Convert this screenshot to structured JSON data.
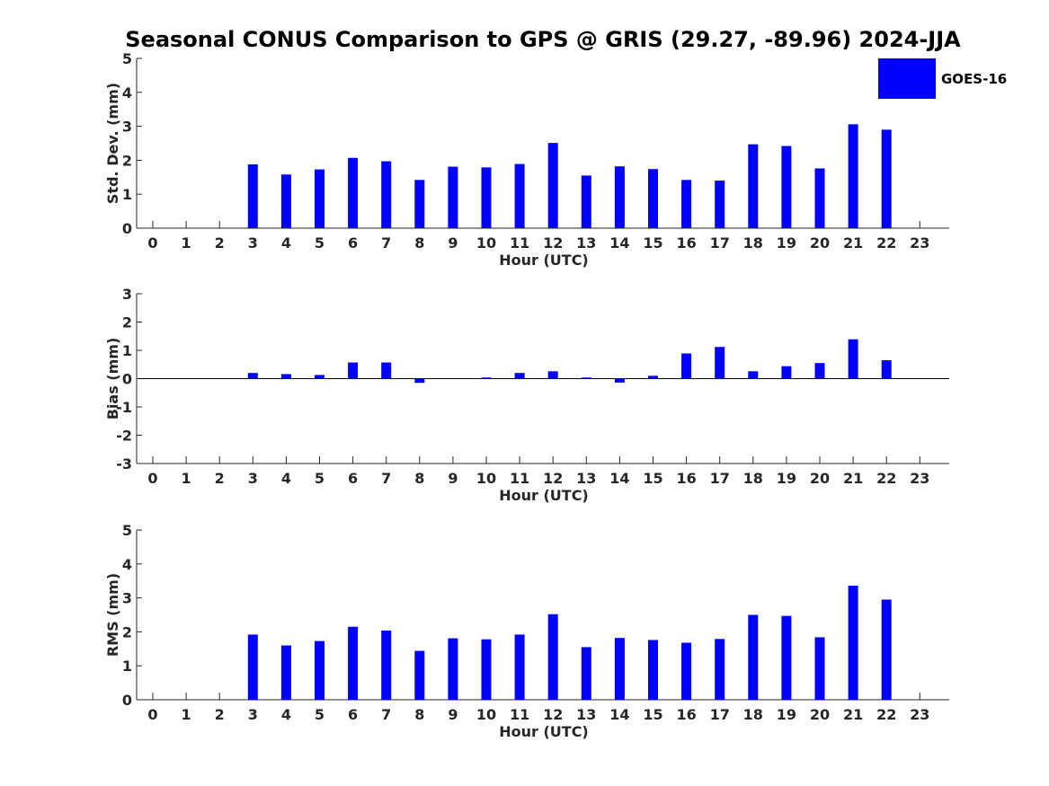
{
  "chart_data": {
    "title": "Seasonal CONUS Comparison to GPS @ GRIS (29.27, -89.96) 2024-JJA",
    "colors": {
      "bar": "#0000ff",
      "axis": "#262626"
    },
    "legend": {
      "label": "GOES-16",
      "placement": "top-right"
    },
    "categories": [
      "0",
      "1",
      "2",
      "3",
      "4",
      "5",
      "6",
      "7",
      "8",
      "9",
      "10",
      "11",
      "12",
      "13",
      "14",
      "15",
      "16",
      "17",
      "18",
      "19",
      "20",
      "21",
      "22",
      "23"
    ],
    "panels": [
      {
        "type": "bar",
        "xlabel": "Hour (UTC)",
        "ylabel": "Std. Dev. (mm)",
        "ylim": [
          0,
          5
        ],
        "yticks": [
          "0",
          "1",
          "2",
          "3",
          "4",
          "5"
        ],
        "values": [
          null,
          null,
          null,
          1.88,
          1.58,
          1.73,
          2.07,
          1.97,
          1.42,
          1.81,
          1.79,
          1.89,
          2.51,
          1.55,
          1.82,
          1.74,
          1.42,
          1.4,
          2.47,
          2.42,
          1.76,
          3.06,
          2.9,
          null
        ]
      },
      {
        "type": "bar",
        "xlabel": "Hour (UTC)",
        "ylabel": "Bias (mm)",
        "ylim": [
          -3,
          3
        ],
        "yticks": [
          "-3",
          "-2",
          "-1",
          "0",
          "1",
          "2",
          "3"
        ],
        "values": [
          null,
          null,
          null,
          0.2,
          0.16,
          0.13,
          0.57,
          0.57,
          -0.15,
          0.0,
          0.04,
          0.2,
          0.26,
          0.04,
          -0.14,
          0.1,
          0.89,
          1.12,
          0.26,
          0.44,
          0.55,
          1.39,
          0.65,
          null
        ]
      },
      {
        "type": "bar",
        "xlabel": "Hour (UTC)",
        "ylabel": "RMS (mm)",
        "ylim": [
          0,
          5
        ],
        "yticks": [
          "0",
          "1",
          "2",
          "3",
          "4",
          "5"
        ],
        "values": [
          null,
          null,
          null,
          1.92,
          1.6,
          1.73,
          2.15,
          2.04,
          1.44,
          1.81,
          1.78,
          1.92,
          2.52,
          1.55,
          1.82,
          1.76,
          1.68,
          1.79,
          2.5,
          2.47,
          1.84,
          3.36,
          2.95,
          null
        ]
      }
    ]
  }
}
